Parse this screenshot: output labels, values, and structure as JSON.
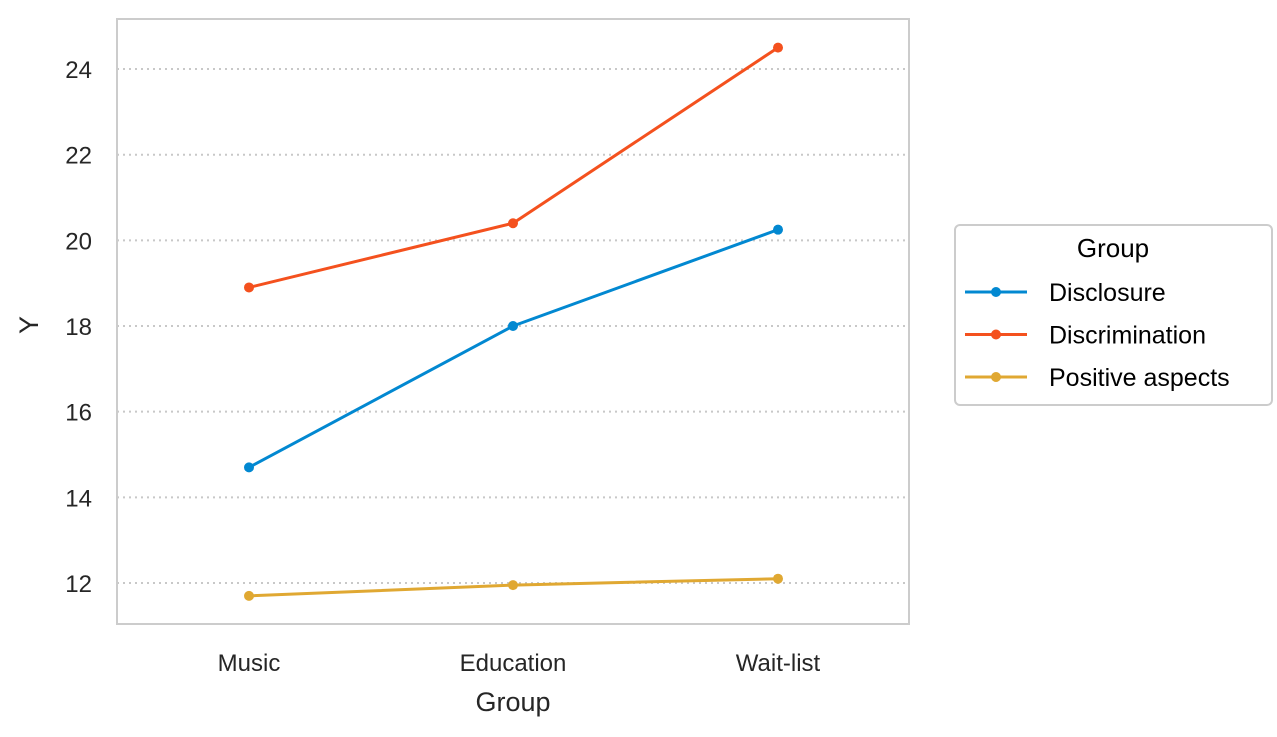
{
  "chart_data": {
    "type": "line",
    "title": "",
    "xlabel": "Group",
    "ylabel": "Y",
    "categories": [
      "Music",
      "Education",
      "Wait-list"
    ],
    "ylim": [
      11,
      25.1
    ],
    "yticks": [
      12,
      14,
      16,
      18,
      20,
      22,
      24
    ],
    "grid": "horizontal dotted",
    "legend": {
      "title": "Group",
      "placement": "right, outside plot"
    },
    "series": [
      {
        "name": "Disclosure",
        "color": "#0288d1",
        "values": [
          14.7,
          18.0,
          20.25
        ]
      },
      {
        "name": "Discrimination",
        "color": "#f4511e",
        "values": [
          18.9,
          20.4,
          24.5
        ]
      },
      {
        "name": "Positive aspects",
        "color": "#e0a832",
        "values": [
          11.7,
          11.95,
          12.1
        ]
      }
    ]
  }
}
